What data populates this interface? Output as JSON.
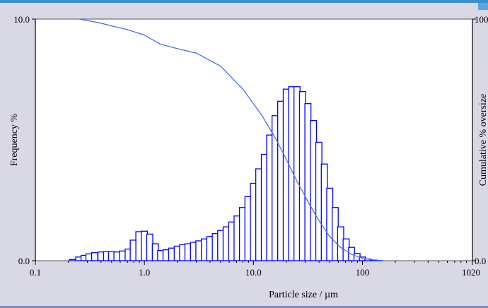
{
  "chart_data": {
    "type": "bar",
    "xlabel": "Particle size / µm",
    "ylabel_left": "Frequency %",
    "ylabel_right": "Cumulative % oversize",
    "x_scale": "log",
    "xlim": [
      0.1,
      1020
    ],
    "x_tick_labels": [
      "0.1",
      "1.0",
      "10.0",
      "100",
      "1020"
    ],
    "x_tick_values": [
      0.1,
      1,
      10,
      100,
      1020
    ],
    "ylim_left": [
      0,
      10
    ],
    "y_left_tick_labels": [
      "0.0",
      "10.0"
    ],
    "ylim_right": [
      0,
      100
    ],
    "y_right_tick_labels": [
      "0.0",
      "100"
    ],
    "grid": false,
    "bar_color": "#0000ff",
    "line_color": "#4a6cf0",
    "frequency_series": {
      "x": [
        0.22,
        0.25,
        0.28,
        0.31,
        0.35,
        0.4,
        0.45,
        0.5,
        0.56,
        0.63,
        0.71,
        0.79,
        0.89,
        1.0,
        1.12,
        1.26,
        1.41,
        1.58,
        1.78,
        2.0,
        2.24,
        2.51,
        2.82,
        3.16,
        3.55,
        3.98,
        4.47,
        5.01,
        5.62,
        6.31,
        7.08,
        7.94,
        8.91,
        10.0,
        11.2,
        12.6,
        14.1,
        15.8,
        17.8,
        20.0,
        22.4,
        25.1,
        28.2,
        31.6,
        35.5,
        39.8,
        44.7,
        50.1,
        56.2,
        63.1,
        70.8,
        79.4,
        89.1,
        100,
        112,
        126,
        141
      ],
      "values": [
        0.05,
        0.15,
        0.22,
        0.28,
        0.33,
        0.36,
        0.37,
        0.37,
        0.36,
        0.4,
        0.48,
        0.85,
        1.2,
        1.22,
        1.1,
        0.7,
        0.42,
        0.45,
        0.52,
        0.6,
        0.66,
        0.7,
        0.76,
        0.82,
        0.9,
        1.0,
        1.12,
        1.25,
        1.4,
        1.6,
        1.85,
        2.2,
        2.65,
        3.2,
        3.8,
        4.4,
        5.2,
        6.0,
        6.6,
        7.1,
        7.2,
        7.2,
        7.0,
        6.5,
        5.8,
        4.9,
        4.0,
        3.0,
        2.2,
        1.4,
        0.9,
        0.55,
        0.3,
        0.15,
        0.07,
        0.03,
        0.01
      ]
    },
    "cumulative_series": {
      "x": [
        0.25,
        0.3,
        0.4,
        0.5,
        0.7,
        1.0,
        1.4,
        2.0,
        3.0,
        5.0,
        8.0,
        12,
        16,
        20,
        25,
        32,
        40,
        50,
        63,
        80,
        100,
        126,
        160
      ],
      "values": [
        100,
        99.4,
        98.3,
        97.2,
        95.6,
        93.4,
        89.6,
        87.8,
        85.9,
        80.5,
        71.0,
        60.0,
        50.5,
        42.0,
        33.0,
        24.0,
        16.5,
        10.0,
        5.5,
        2.5,
        1.0,
        0.3,
        0.0
      ]
    }
  }
}
